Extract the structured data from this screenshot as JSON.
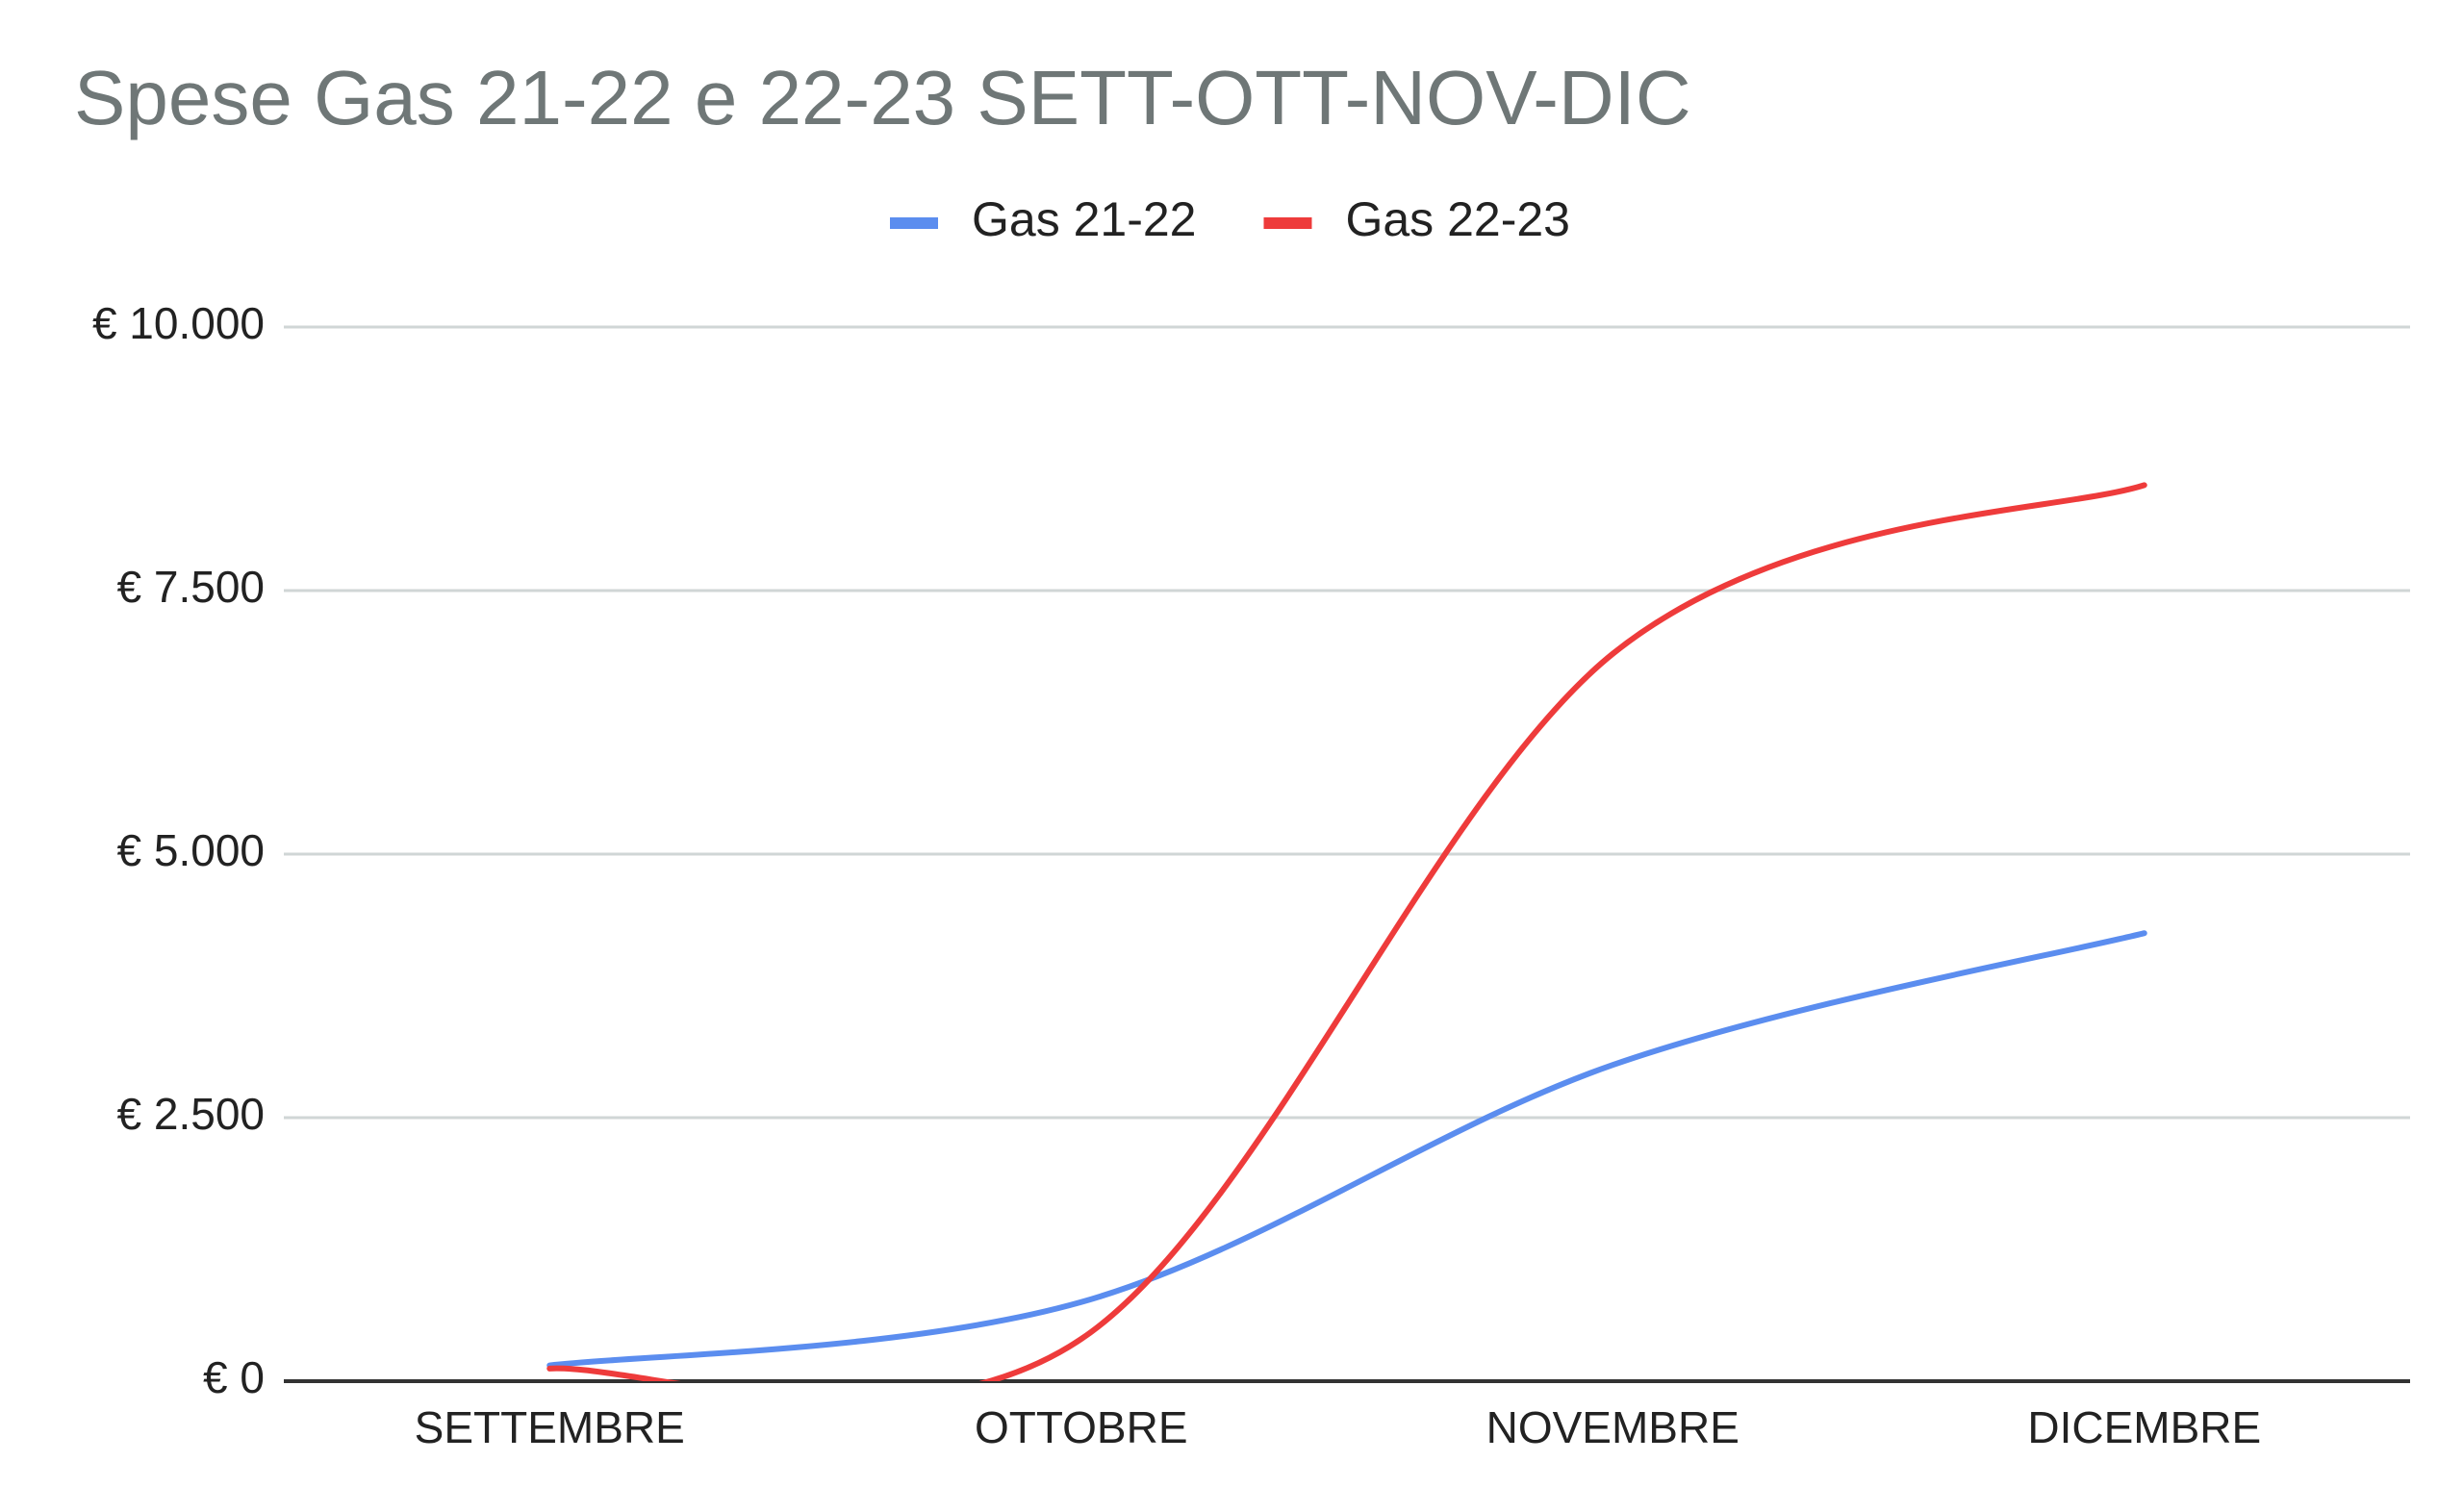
{
  "chart_data": {
    "type": "line",
    "title": "Spese Gas 21-22 e 22-23 SETT-OTT-NOV-DIC",
    "categories": [
      "SETTEMBRE",
      "OTTOBRE",
      "NOVEMBRE",
      "DICEMBRE"
    ],
    "series": [
      {
        "name": "Gas 21-22",
        "color": "#5b8def",
        "values": [
          150,
          750,
          3000,
          4250
        ]
      },
      {
        "name": "Gas 22-23",
        "color": "#ee3b3b",
        "values": [
          120,
          400,
          6900,
          8500
        ]
      }
    ],
    "ylim": [
      0,
      10000
    ],
    "yticks": [
      {
        "value": 0,
        "label": "€ 0"
      },
      {
        "value": 2500,
        "label": "€ 2.500"
      },
      {
        "value": 5000,
        "label": "€ 5.000"
      },
      {
        "value": 7500,
        "label": "€ 7.500"
      },
      {
        "value": 10000,
        "label": "€ 10.000"
      }
    ],
    "grid": true,
    "legend": "top",
    "smooth": true
  }
}
